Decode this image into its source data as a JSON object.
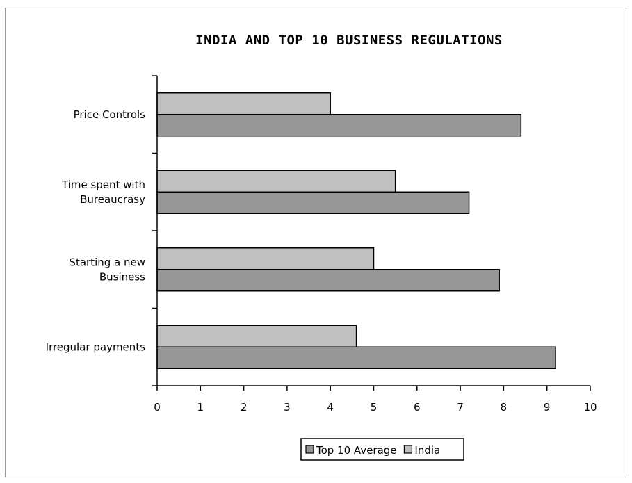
{
  "chart_data": {
    "type": "bar",
    "orientation": "horizontal",
    "title": "INDIA AND TOP 10 BUSINESS REGULATIONS",
    "categories": [
      [
        "Price Controls"
      ],
      [
        "Time spent with",
        "Bureaucrasy"
      ],
      [
        "Starting a new",
        "Business"
      ],
      [
        "Irregular payments"
      ]
    ],
    "series": [
      {
        "name": "India",
        "color": "#c0c0c0",
        "values": [
          4.0,
          5.5,
          5.0,
          4.6
        ]
      },
      {
        "name": "Top 10 Average",
        "color": "#969696",
        "values": [
          8.4,
          7.2,
          7.9,
          9.2
        ]
      }
    ],
    "xlim": [
      0,
      10
    ],
    "xticks": [
      "0",
      "1",
      "2",
      "3",
      "4",
      "5",
      "6",
      "7",
      "8",
      "9",
      "10"
    ],
    "grid": false,
    "legend": {
      "position": "bottom",
      "items": [
        "Top 10 Average",
        "India"
      ]
    }
  }
}
